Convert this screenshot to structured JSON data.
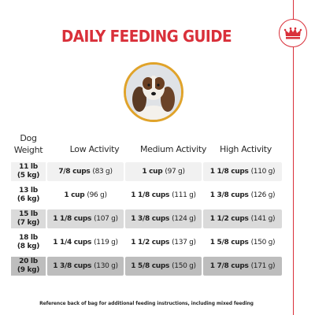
{
  "title": "DAILY FEEDING GUIDE",
  "brand": {
    "logo_icon": "crown-icon",
    "accent_color": "#d9303a"
  },
  "photo": {
    "subject_icon": "dog-icon",
    "ring_color": "#e0a32a"
  },
  "table": {
    "headers": {
      "weight": "Dog Weight",
      "low": "Low Activity",
      "medium": "Medium Activity",
      "high": "High Activity"
    },
    "rows": [
      {
        "lb": "11 lb",
        "kg": "(5 kg)",
        "low": {
          "cups": "7/8 cups",
          "grams": "(83 g)"
        },
        "medium": {
          "cups": "1 cup",
          "grams": "(97 g)"
        },
        "high": {
          "cups": "1 1/8 cups",
          "grams": "(110 g)"
        }
      },
      {
        "lb": "13 lb",
        "kg": "(6 kg)",
        "low": {
          "cups": "1 cup",
          "grams": "(96 g)"
        },
        "medium": {
          "cups": "1 1/8 cups",
          "grams": "(111 g)"
        },
        "high": {
          "cups": "1 3/8 cups",
          "grams": "(126 g)"
        }
      },
      {
        "lb": "15 lb",
        "kg": "(7 kg)",
        "low": {
          "cups": "1 1/8 cups",
          "grams": "(107 g)"
        },
        "medium": {
          "cups": "1 3/8 cups",
          "grams": "(124 g)"
        },
        "high": {
          "cups": "1 1/2 cups",
          "grams": "(141 g)"
        }
      },
      {
        "lb": "18 lb",
        "kg": "(8 kg)",
        "low": {
          "cups": "1 1/4 cups",
          "grams": "(119 g)"
        },
        "medium": {
          "cups": "1 1/2 cups",
          "grams": "(137 g)"
        },
        "high": {
          "cups": "1 5/8 cups",
          "grams": "(150 g)"
        }
      },
      {
        "lb": "20 lb",
        "kg": "(9 kg)",
        "low": {
          "cups": "1 3/8 cups",
          "grams": "(130 g)"
        },
        "medium": {
          "cups": "1 5/8 cups",
          "grams": "(150 g)"
        },
        "high": {
          "cups": "1 7/8 cups",
          "grams": "(171 g)"
        }
      }
    ]
  },
  "footnote": "Reference back of bag for additional feeding instructions, including mixed feeding"
}
